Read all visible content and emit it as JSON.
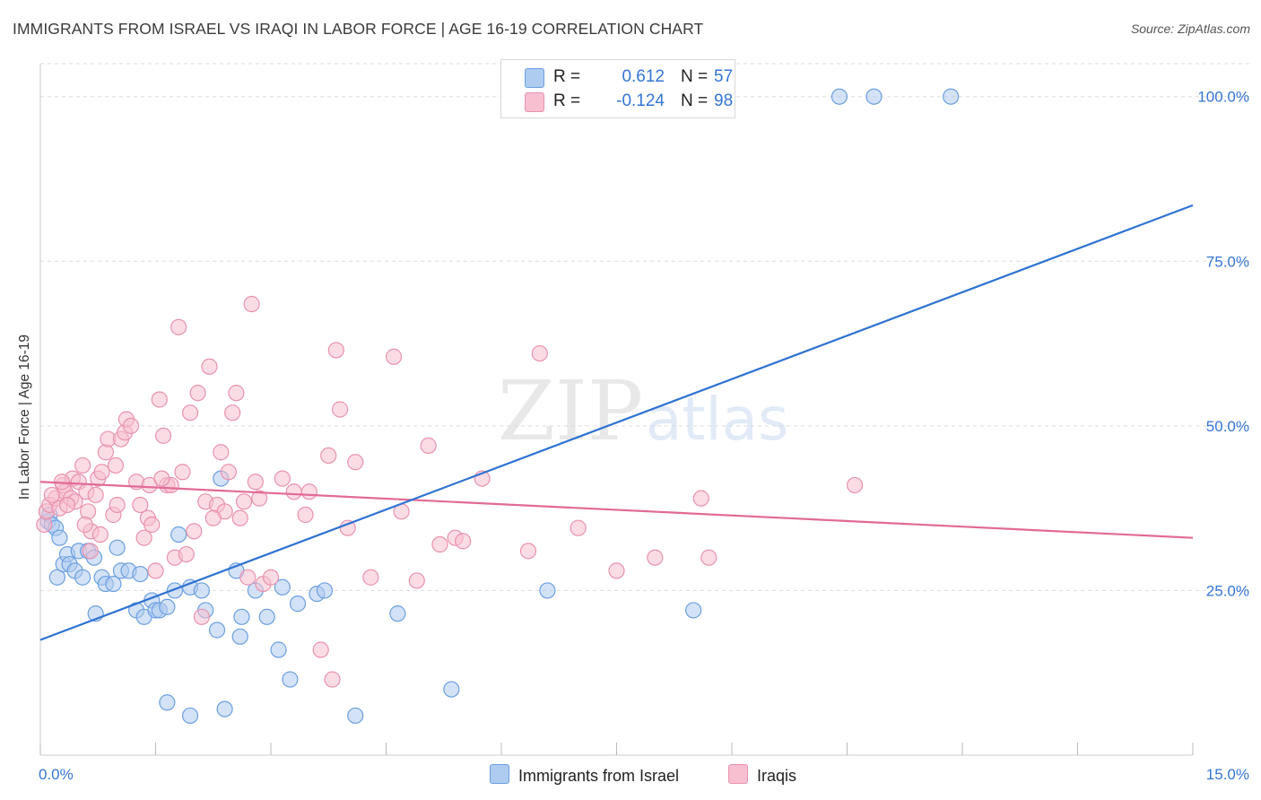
{
  "title": "IMMIGRANTS FROM ISRAEL VS IRAQI IN LABOR FORCE | AGE 16-19 CORRELATION CHART",
  "source": "Source: ZipAtlas.com",
  "watermark": {
    "zip": "ZIP",
    "atlas": "atlas"
  },
  "legend": {
    "r_label": "R =",
    "n_label": "N =",
    "israel": {
      "r": "0.612",
      "n": "57"
    },
    "iraqis": {
      "r": "-0.124",
      "n": "98"
    }
  },
  "colors": {
    "israel_fill": "#aecbf0",
    "israel_stroke": "#6c9fe0",
    "israel_line": "#2f72d0",
    "iraqis_fill": "#f7bfd0",
    "iraqis_stroke": "#e892ae",
    "iraqis_line": "#e26a96",
    "tick_label": "#3575d4",
    "grid": "#dddddd"
  },
  "chart_data": {
    "type": "scatter",
    "title": "IMMIGRANTS FROM ISRAEL VS IRAQI IN LABOR FORCE | AGE 16-19 CORRELATION CHART",
    "xlabel": "",
    "ylabel": "In Labor Force | Age 16-19",
    "xlim": [
      0,
      15
    ],
    "ylim": [
      0,
      105
    ],
    "x_tick_labels": [
      "0.0%",
      "15.0%"
    ],
    "y_ticks": [
      25,
      50,
      75,
      100
    ],
    "y_tick_labels": [
      "25.0%",
      "50.0%",
      "75.0%",
      "100.0%"
    ],
    "grid": "horizontal dashed",
    "legend_position": "top-center and bottom",
    "series": [
      {
        "name": "Immigrants from Israel",
        "r": 0.612,
        "n": 57,
        "trend": [
          [
            0,
            17.5
          ],
          [
            15,
            83.5
          ]
        ],
        "points": [
          [
            0.1,
            35.5
          ],
          [
            0.12,
            36.5
          ],
          [
            0.15,
            35
          ],
          [
            0.2,
            34.5
          ],
          [
            0.25,
            33
          ],
          [
            0.22,
            27
          ],
          [
            0.3,
            29
          ],
          [
            0.35,
            30.5
          ],
          [
            0.38,
            29
          ],
          [
            0.45,
            28
          ],
          [
            0.5,
            31
          ],
          [
            0.55,
            27
          ],
          [
            0.62,
            31
          ],
          [
            0.7,
            30
          ],
          [
            0.72,
            21.5
          ],
          [
            0.8,
            27
          ],
          [
            0.85,
            26
          ],
          [
            0.95,
            26
          ],
          [
            1.0,
            31.5
          ],
          [
            1.05,
            28
          ],
          [
            1.15,
            28
          ],
          [
            1.25,
            22
          ],
          [
            1.3,
            27.5
          ],
          [
            1.35,
            21
          ],
          [
            1.45,
            23.5
          ],
          [
            1.5,
            22
          ],
          [
            1.55,
            22
          ],
          [
            1.65,
            22.5
          ],
          [
            1.75,
            25
          ],
          [
            1.8,
            33.5
          ],
          [
            1.95,
            25.5
          ],
          [
            2.1,
            25
          ],
          [
            2.15,
            22
          ],
          [
            2.3,
            19
          ],
          [
            2.35,
            42
          ],
          [
            2.55,
            28
          ],
          [
            2.6,
            18
          ],
          [
            2.62,
            21
          ],
          [
            2.8,
            25
          ],
          [
            2.95,
            21
          ],
          [
            3.1,
            16
          ],
          [
            3.15,
            25.5
          ],
          [
            3.25,
            11.5
          ],
          [
            3.35,
            23
          ],
          [
            3.6,
            24.5
          ],
          [
            3.7,
            25
          ],
          [
            4.65,
            21.5
          ],
          [
            5.35,
            10
          ],
          [
            6.6,
            25
          ],
          [
            8.5,
            22
          ],
          [
            1.65,
            8
          ],
          [
            1.95,
            6
          ],
          [
            2.4,
            7
          ],
          [
            4.1,
            6
          ],
          [
            10.4,
            100
          ],
          [
            10.85,
            100
          ],
          [
            11.85,
            100
          ]
        ]
      },
      {
        "name": "Iraqis",
        "r": -0.124,
        "n": 98,
        "trend": [
          [
            0,
            41.5
          ],
          [
            15,
            33
          ]
        ],
        "points": [
          [
            0.05,
            35
          ],
          [
            0.08,
            37
          ],
          [
            0.12,
            38
          ],
          [
            0.2,
            39
          ],
          [
            0.25,
            37.5
          ],
          [
            0.3,
            41
          ],
          [
            0.32,
            40
          ],
          [
            0.4,
            39
          ],
          [
            0.42,
            42
          ],
          [
            0.45,
            38.5
          ],
          [
            0.5,
            41.5
          ],
          [
            0.55,
            44
          ],
          [
            0.6,
            40
          ],
          [
            0.62,
            37
          ],
          [
            0.66,
            34
          ],
          [
            0.72,
            39.5
          ],
          [
            0.75,
            42
          ],
          [
            0.8,
            43
          ],
          [
            0.85,
            46
          ],
          [
            0.88,
            48
          ],
          [
            0.95,
            36.5
          ],
          [
            1.0,
            38
          ],
          [
            1.05,
            48
          ],
          [
            1.1,
            49
          ],
          [
            1.12,
            51
          ],
          [
            1.18,
            50
          ],
          [
            1.25,
            41.5
          ],
          [
            1.3,
            38
          ],
          [
            1.35,
            33
          ],
          [
            1.4,
            36
          ],
          [
            1.45,
            35
          ],
          [
            1.5,
            28
          ],
          [
            1.55,
            54
          ],
          [
            1.6,
            48.5
          ],
          [
            1.65,
            41
          ],
          [
            1.7,
            41
          ],
          [
            1.75,
            30
          ],
          [
            1.8,
            65
          ],
          [
            1.85,
            43
          ],
          [
            1.9,
            30.5
          ],
          [
            1.95,
            52
          ],
          [
            2.0,
            34
          ],
          [
            2.05,
            55
          ],
          [
            2.1,
            21
          ],
          [
            2.15,
            38.5
          ],
          [
            2.2,
            59
          ],
          [
            2.3,
            38
          ],
          [
            2.35,
            46
          ],
          [
            2.4,
            37
          ],
          [
            2.45,
            43
          ],
          [
            2.5,
            52
          ],
          [
            2.55,
            55
          ],
          [
            2.6,
            36
          ],
          [
            2.65,
            38.5
          ],
          [
            2.7,
            27
          ],
          [
            2.75,
            68.5
          ],
          [
            2.8,
            41.5
          ],
          [
            2.85,
            39
          ],
          [
            2.9,
            26
          ],
          [
            3.0,
            27
          ],
          [
            3.3,
            40
          ],
          [
            3.5,
            40
          ],
          [
            3.65,
            16
          ],
          [
            3.75,
            45.5
          ],
          [
            3.8,
            11.5
          ],
          [
            3.85,
            61.5
          ],
          [
            3.9,
            52.5
          ],
          [
            4.0,
            34.5
          ],
          [
            4.1,
            44.5
          ],
          [
            4.3,
            27
          ],
          [
            4.6,
            60.5
          ],
          [
            4.7,
            37
          ],
          [
            4.9,
            26.5
          ],
          [
            5.05,
            47
          ],
          [
            5.2,
            32
          ],
          [
            5.4,
            33
          ],
          [
            5.5,
            32.5
          ],
          [
            5.75,
            42
          ],
          [
            6.35,
            31
          ],
          [
            6.5,
            61
          ],
          [
            7.0,
            34.5
          ],
          [
            7.5,
            28
          ],
          [
            8.0,
            30
          ],
          [
            8.6,
            39
          ],
          [
            8.7,
            30
          ],
          [
            10.6,
            41
          ],
          [
            0.15,
            39.5
          ],
          [
            0.28,
            41.5
          ],
          [
            0.35,
            38
          ],
          [
            0.58,
            35
          ],
          [
            0.65,
            31
          ],
          [
            0.78,
            33.5
          ],
          [
            0.98,
            44
          ],
          [
            1.42,
            41
          ],
          [
            1.58,
            42
          ],
          [
            2.25,
            36
          ],
          [
            3.15,
            42
          ],
          [
            3.45,
            36.5
          ]
        ]
      }
    ]
  },
  "legend_bottom": {
    "israel": "Immigrants from Israel",
    "iraqis": "Iraqis"
  }
}
